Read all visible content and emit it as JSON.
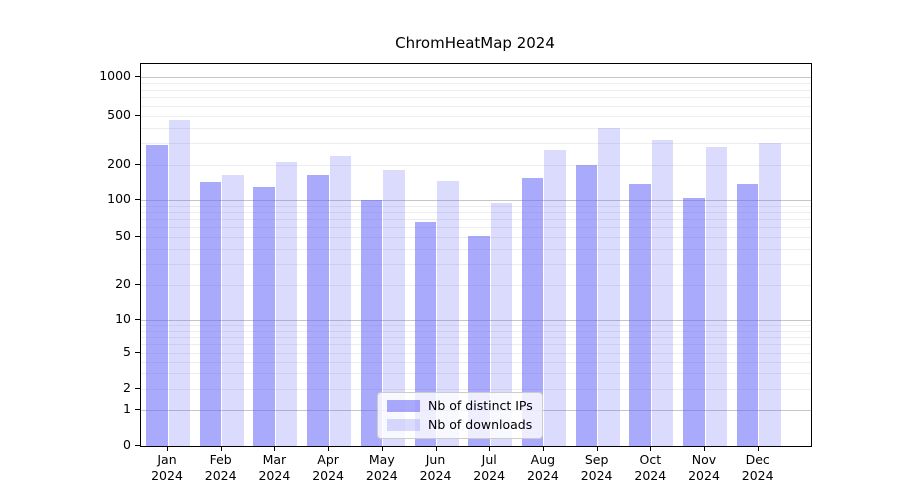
{
  "figure": {
    "background": "#ffffff"
  },
  "chart_data": {
    "type": "bar",
    "title": "ChromHeatMap 2024",
    "categories": [
      "Jan 2024",
      "Feb 2024",
      "Mar 2024",
      "Apr 2024",
      "May 2024",
      "Jun 2024",
      "Jul 2024",
      "Aug 2024",
      "Sep 2024",
      "Oct 2024",
      "Nov 2024",
      "Dec 2024"
    ],
    "series": [
      {
        "name": "Nb of distinct IPs",
        "color": "rgba(100,100,250,0.55)",
        "color_on_white": "#aaaafb",
        "values": [
          290,
          143,
          130,
          164,
          100,
          66,
          51,
          155,
          202,
          138,
          105,
          137
        ]
      },
      {
        "name": "Nb of downloads",
        "color": "rgba(100,100,250,0.23)",
        "color_on_white": "#dcdcfc",
        "values": [
          465,
          165,
          211,
          237,
          181,
          145,
          95,
          263,
          400,
          322,
          280,
          303
        ]
      }
    ],
    "xlabel": "",
    "ylabel": "",
    "yscale": "symlog",
    "y_ticks": [
      0,
      1,
      2,
      5,
      10,
      20,
      50,
      100,
      200,
      500,
      1000
    ],
    "ylim": [
      0,
      1280
    ],
    "grid": true,
    "legend_position": "lower center (inside plot)"
  },
  "colors": {
    "axis": "#000000",
    "major_grid": "#c6c6c6",
    "minor_grid": "#ededed",
    "legend_bg": "rgba(255,255,255,0.8)",
    "legend_border": "#cccccc",
    "text": "#000000"
  }
}
